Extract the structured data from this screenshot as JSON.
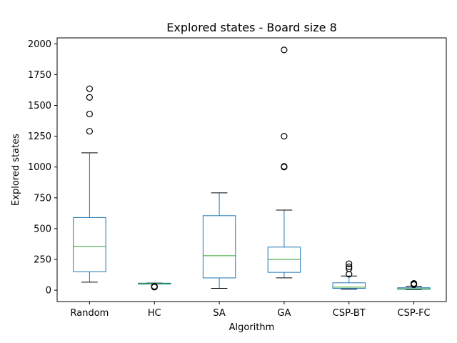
{
  "chart_data": {
    "type": "boxplot",
    "title": "Explored states - Board size 8",
    "xlabel": "Algorithm",
    "ylabel": "Explored states",
    "ylim": [
      -92,
      2048
    ],
    "yticks": [
      0,
      250,
      500,
      750,
      1000,
      1250,
      1500,
      1750,
      2000
    ],
    "ytick_labels": [
      "0",
      "250",
      "500",
      "750",
      "1000",
      "1250",
      "1500",
      "1750",
      "2000"
    ],
    "grid": false,
    "colors": {
      "box": "#1f77b4",
      "median": "#2ca02c",
      "whisker_cap": "#000000",
      "outlier": "#000000"
    },
    "series": [
      {
        "name": "Random",
        "whislo": 65,
        "q1": 150,
        "med": 355,
        "q3": 590,
        "whishi": 1115,
        "fliers": [
          1290,
          1430,
          1565,
          1635
        ]
      },
      {
        "name": "HC",
        "whislo": 50,
        "q1": 50,
        "med": 55,
        "q3": 57,
        "whishi": 58,
        "fliers": [
          25,
          28,
          30,
          32
        ]
      },
      {
        "name": "SA",
        "whislo": 15,
        "q1": 100,
        "med": 280,
        "q3": 605,
        "whishi": 790,
        "fliers": []
      },
      {
        "name": "GA",
        "whislo": 100,
        "q1": 145,
        "med": 250,
        "q3": 350,
        "whishi": 650,
        "fliers": [
          1000,
          1005,
          1250,
          1950
        ]
      },
      {
        "name": "CSP-BT",
        "whislo": 8,
        "q1": 15,
        "med": 25,
        "q3": 60,
        "whishi": 115,
        "fliers": [
          130,
          175,
          190,
          215
        ]
      },
      {
        "name": "CSP-FC",
        "whislo": 5,
        "q1": 8,
        "med": 12,
        "q3": 20,
        "whishi": 33,
        "fliers": [
          45,
          50,
          55
        ]
      }
    ]
  }
}
